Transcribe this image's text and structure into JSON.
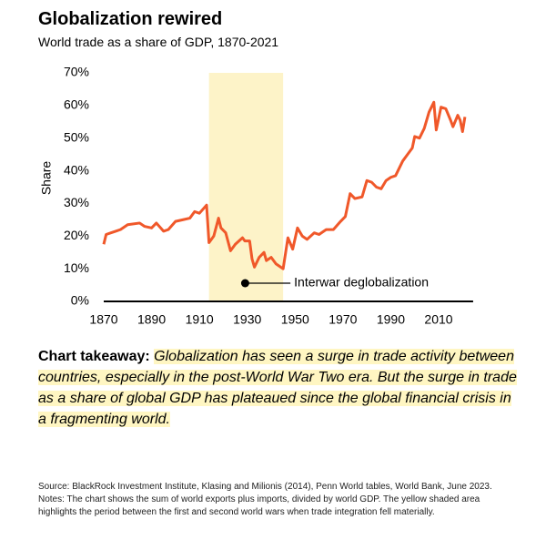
{
  "chart_data": {
    "type": "line",
    "title": "Globalization rewired",
    "subtitle": "World trade as a share of GDP, 1870-2021",
    "y_label": "Share",
    "annotation": "Interwar deglobalization",
    "shade_span": [
      1914,
      1945
    ],
    "shade_color": "#fdf3c8",
    "x": [
      1870,
      1871,
      1873,
      1875,
      1877,
      1880,
      1885,
      1887,
      1890,
      1892,
      1895,
      1897,
      1900,
      1903,
      1906,
      1908,
      1910,
      1913,
      1914,
      1916,
      1918,
      1919,
      1921,
      1923,
      1925,
      1928,
      1929,
      1931,
      1932,
      1933,
      1935,
      1937,
      1938,
      1940,
      1942,
      1944,
      1945,
      1947,
      1949,
      1951,
      1953,
      1955,
      1958,
      1960,
      1963,
      1966,
      1969,
      1971,
      1973,
      1975,
      1978,
      1980,
      1982,
      1984,
      1986,
      1988,
      1990,
      1992,
      1993,
      1995,
      1997,
      1999,
      2000,
      2002,
      2004,
      2006,
      2008,
      2009,
      2011,
      2013,
      2015,
      2016,
      2018,
      2019,
      2020,
      2021
    ],
    "series": [
      {
        "name": "World trade as a share of GDP",
        "color": "#f0582a",
        "values": [
          17.5,
          20.5,
          21,
          21.5,
          22,
          23.5,
          24,
          23,
          22.5,
          24,
          21.5,
          22,
          24.5,
          25,
          25.5,
          27.5,
          27,
          29.5,
          18,
          20,
          25.5,
          22.5,
          21,
          15.5,
          17.5,
          19.5,
          18.5,
          18.5,
          13,
          10.5,
          13.5,
          15,
          12.5,
          13.5,
          11.5,
          10.5,
          10,
          19.5,
          16,
          22.5,
          20,
          19,
          21,
          20.5,
          22,
          22,
          24.5,
          26,
          33,
          31.5,
          32,
          37,
          36.5,
          35,
          34.5,
          37,
          38,
          38.5,
          40,
          43,
          45,
          47,
          50.5,
          50,
          53,
          58,
          61,
          52.5,
          59.5,
          59,
          55.5,
          53.5,
          57,
          55.5,
          52,
          56.5
        ]
      }
    ],
    "xlim": [
      1870,
      2021
    ],
    "xticks": [
      1870,
      1890,
      1910,
      1930,
      1950,
      1970,
      1990,
      2010
    ],
    "ylim": [
      0,
      70
    ],
    "yticks": [
      {
        "value": 0,
        "label": "0%"
      },
      {
        "value": 10,
        "label": "10%"
      },
      {
        "value": 20,
        "label": "20%"
      },
      {
        "value": 30,
        "label": "30%"
      },
      {
        "value": 40,
        "label": "40%"
      },
      {
        "value": 50,
        "label": "50%"
      },
      {
        "value": 60,
        "label": "60%"
      },
      {
        "value": 70,
        "label": "70%"
      }
    ],
    "grid": false
  },
  "takeaway": {
    "label": "Chart takeaway:",
    "text": "Globalization has seen a surge in trade activity between countries, especially in the post-World War Two era. But the surge in trade as a share of global GDP has plateaued since the global financial crisis in a fragmenting world."
  },
  "source": "Source: BlackRock Investment Institute, Klasing and Milionis (2014), Penn World tables, World Bank, June 2023.  Notes: The chart shows the sum of world exports plus imports, divided by world GDP. The yellow shaded area highlights the period between the first and second world wars when trade integration fell materially."
}
